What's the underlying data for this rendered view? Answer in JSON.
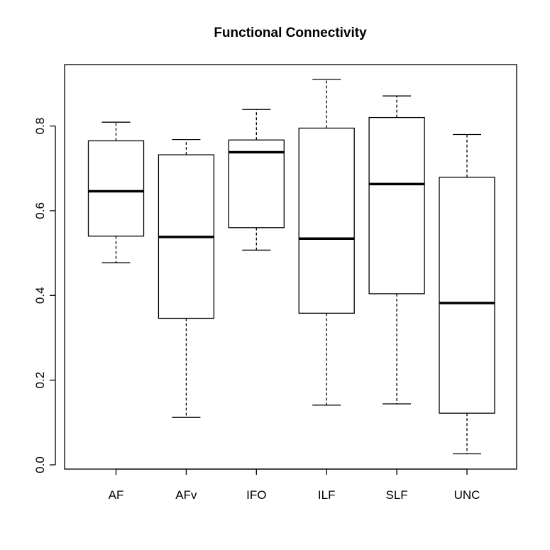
{
  "chart_data": {
    "type": "boxplot",
    "title": "Functional Connectivity",
    "xlabel": "",
    "ylabel": "",
    "ylim": [
      -0.01,
      0.945
    ],
    "y_ticks": [
      "0.0",
      "0.2",
      "0.4",
      "0.6",
      "0.8"
    ],
    "y_tick_values": [
      0.0,
      0.2,
      0.4,
      0.6,
      0.8
    ],
    "grid": false,
    "categories": [
      "AF",
      "AFv",
      "IFO",
      "ILF",
      "SLF",
      "UNC"
    ],
    "boxes": [
      {
        "name": "AF",
        "min": 0.477,
        "q1": 0.54,
        "median": 0.646,
        "q3": 0.765,
        "max": 0.809
      },
      {
        "name": "AFv",
        "min": 0.112,
        "q1": 0.346,
        "median": 0.538,
        "q3": 0.732,
        "max": 0.768
      },
      {
        "name": "IFO",
        "min": 0.507,
        "q1": 0.56,
        "median": 0.738,
        "q3": 0.767,
        "max": 0.839
      },
      {
        "name": "ILF",
        "min": 0.141,
        "q1": 0.358,
        "median": 0.534,
        "q3": 0.795,
        "max": 0.91
      },
      {
        "name": "SLF",
        "min": 0.144,
        "q1": 0.404,
        "median": 0.663,
        "q3": 0.82,
        "max": 0.871
      },
      {
        "name": "UNC",
        "min": 0.026,
        "q1": 0.122,
        "median": 0.382,
        "q3": 0.679,
        "max": 0.78
      }
    ]
  }
}
